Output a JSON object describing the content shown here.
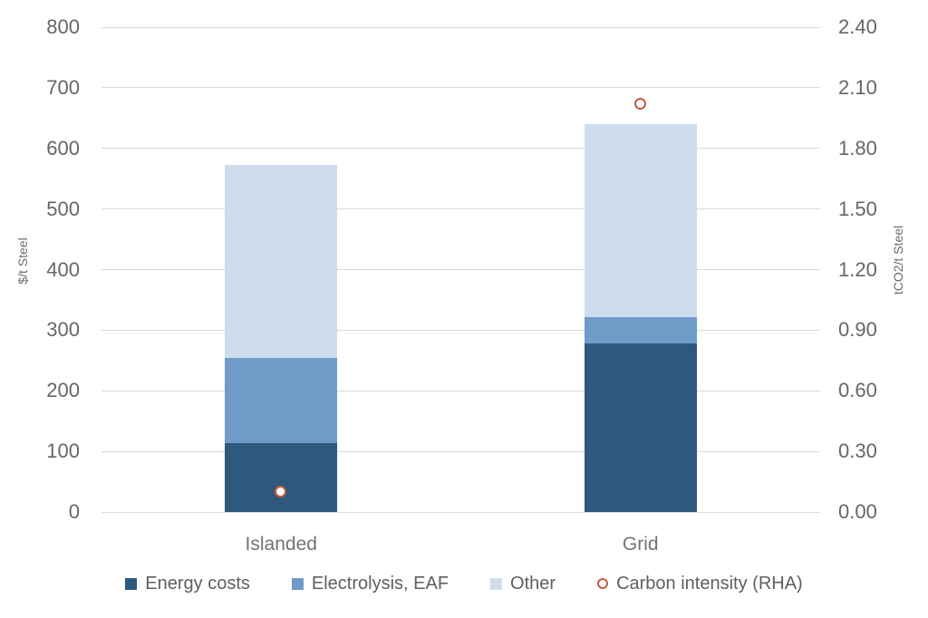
{
  "chart_data": {
    "type": "bar",
    "subtype": "stacked-column-with-secondary-axis-scatter",
    "title": "",
    "categories": [
      "Islanded",
      "Grid"
    ],
    "series": [
      {
        "name": "Energy costs",
        "color": "#2e587d",
        "axis": "left",
        "values": [
          114,
          278
        ]
      },
      {
        "name": "Electrolysis, EAF",
        "color": "#6f9bc8",
        "axis": "left",
        "values": [
          140,
          44
        ]
      },
      {
        "name": "Other",
        "color": "#cdddec",
        "axis": "left",
        "values": [
          319,
          318
        ]
      }
    ],
    "stack_totals": [
      573,
      640
    ],
    "scatter_series": {
      "name": "Carbon intensity (RHA)",
      "marker": "open-circle",
      "color": "#c55a3c",
      "axis": "right",
      "values": [
        0.1,
        2.02
      ]
    },
    "left_axis": {
      "label": "$/t Steel",
      "min": 0,
      "max": 800,
      "tick_step": 100,
      "ticks": [
        800,
        700,
        600,
        500,
        400,
        300,
        200,
        100,
        0
      ]
    },
    "right_axis": {
      "label": "tCO2/t Steel",
      "min": 0,
      "max": 2.4,
      "tick_step": 0.3,
      "ticks": [
        "2.40",
        "2.10",
        "1.80",
        "1.50",
        "1.20",
        "0.90",
        "0.60",
        "0.30",
        "0.00"
      ]
    },
    "grid": true,
    "legend_position": "bottom",
    "colors": {
      "gridline": "#d9d9d9",
      "axis_text": "#666666",
      "background": "#ffffff"
    }
  }
}
